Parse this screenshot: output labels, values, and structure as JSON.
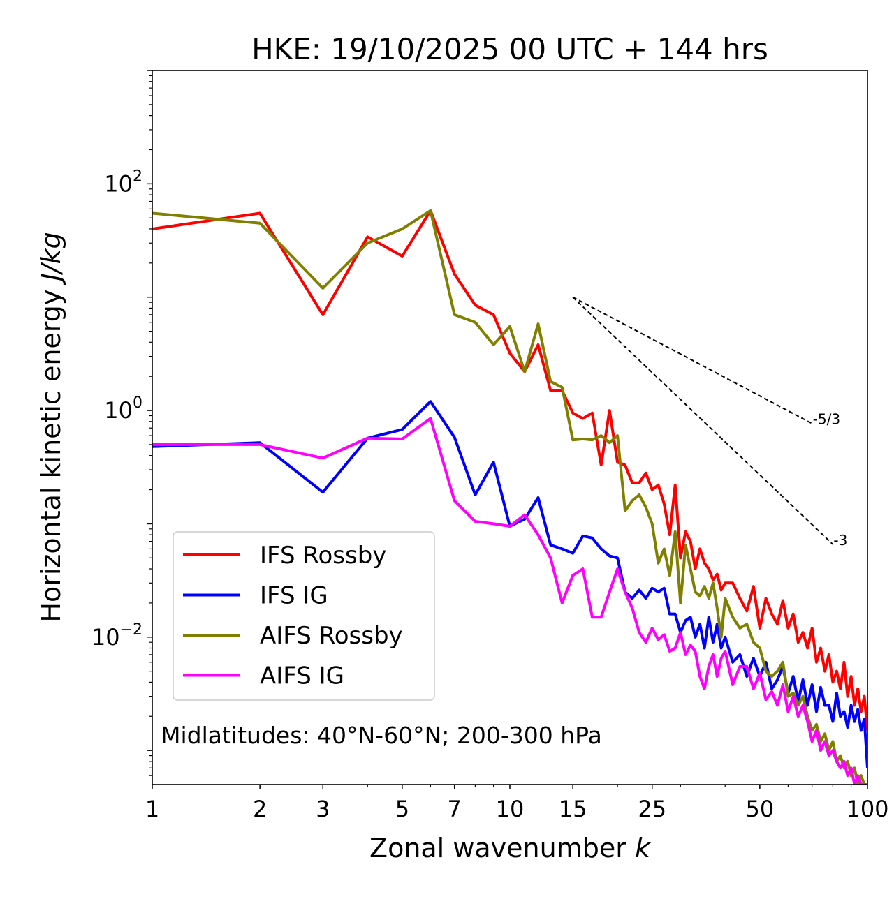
{
  "chart_data": {
    "type": "line",
    "title": "HKE: 19/10/2025 00 UTC + 144 hrs",
    "xlabel": "Zonal wavenumber",
    "xlabel_symbol": "k",
    "ylabel": "Horizontal kinetic energy",
    "ylabel_unit": "J/kg",
    "xscale": "log",
    "yscale": "log",
    "xlim": [
      1,
      100
    ],
    "ylim": [
      0.0005,
      1000
    ],
    "x_ticks": [
      1,
      2,
      3,
      5,
      7,
      10,
      15,
      25,
      50,
      100
    ],
    "x_tick_labels": [
      "1",
      "2",
      "3",
      "5",
      "7",
      "10",
      "15",
      "25",
      "50",
      "100"
    ],
    "y_ticks": [
      {
        "value": 100,
        "base": "10",
        "exp": "2"
      },
      {
        "value": 1,
        "base": "10",
        "exp": "0"
      },
      {
        "value": 0.01,
        "base": "10",
        "exp": "−2"
      }
    ],
    "annotation": "Midlatitudes: 40°N-60°N; 200-300 hPa",
    "legend_position": "lower-left",
    "reference_slopes": [
      {
        "label": "-5/3",
        "slope": -1.6667,
        "x_start": 15,
        "x_end": 70,
        "y_start": 10
      },
      {
        "label": "-3",
        "slope": -3,
        "x_start": 15,
        "x_end": 80,
        "y_start": 10
      }
    ],
    "series": [
      {
        "name": "IFS Rossby",
        "color": "#ff0000",
        "x": [
          1,
          2,
          3,
          4,
          5,
          6,
          7,
          8,
          9,
          10,
          11,
          12,
          13,
          14,
          15,
          16,
          17,
          18,
          19,
          20,
          21,
          22,
          23,
          24,
          25,
          26,
          27,
          28,
          29,
          30,
          31,
          32,
          33,
          34,
          35,
          36,
          37,
          38,
          39,
          40,
          42,
          44,
          46,
          48,
          50,
          52,
          54,
          56,
          58,
          60,
          62,
          64,
          66,
          68,
          70,
          72,
          74,
          76,
          78,
          80,
          82,
          84,
          86,
          88,
          90,
          92,
          94,
          96,
          98,
          100
        ],
        "values": [
          40,
          55,
          7,
          34,
          23,
          58,
          16,
          8.5,
          7,
          3.2,
          2.2,
          3.8,
          1.5,
          1.5,
          0.95,
          0.85,
          0.95,
          0.33,
          1.0,
          0.35,
          0.33,
          0.23,
          0.23,
          0.28,
          0.2,
          0.22,
          0.15,
          0.08,
          0.22,
          0.05,
          0.085,
          0.07,
          0.04,
          0.06,
          0.045,
          0.04,
          0.032,
          0.036,
          0.026,
          0.03,
          0.03,
          0.022,
          0.017,
          0.028,
          0.012,
          0.022,
          0.016,
          0.013,
          0.021,
          0.012,
          0.016,
          0.009,
          0.011,
          0.008,
          0.012,
          0.006,
          0.008,
          0.005,
          0.007,
          0.004,
          0.005,
          0.0035,
          0.006,
          0.003,
          0.0045,
          0.0025,
          0.0035,
          0.0022,
          0.003,
          0.0015
        ]
      },
      {
        "name": "IFS IG",
        "color": "#0000ff",
        "x": [
          1,
          2,
          3,
          4,
          5,
          6,
          7,
          8,
          9,
          10,
          11,
          12,
          13,
          14,
          15,
          16,
          17,
          18,
          19,
          20,
          21,
          22,
          23,
          24,
          25,
          26,
          27,
          28,
          29,
          30,
          31,
          32,
          33,
          34,
          35,
          36,
          37,
          38,
          39,
          40,
          42,
          44,
          46,
          48,
          50,
          52,
          54,
          56,
          58,
          60,
          62,
          64,
          66,
          68,
          70,
          72,
          74,
          76,
          78,
          80,
          82,
          84,
          86,
          88,
          90,
          92,
          94,
          96,
          98,
          100
        ],
        "values": [
          0.48,
          0.52,
          0.19,
          0.57,
          0.68,
          1.2,
          0.58,
          0.18,
          0.35,
          0.095,
          0.11,
          0.17,
          0.065,
          0.06,
          0.055,
          0.078,
          0.075,
          0.06,
          0.052,
          0.05,
          0.025,
          0.022,
          0.026,
          0.022,
          0.027,
          0.025,
          0.027,
          0.016,
          0.016,
          0.011,
          0.014,
          0.015,
          0.01,
          0.013,
          0.008,
          0.015,
          0.009,
          0.013,
          0.008,
          0.01,
          0.006,
          0.007,
          0.0045,
          0.0065,
          0.0045,
          0.006,
          0.0035,
          0.0042,
          0.0055,
          0.0032,
          0.0045,
          0.0027,
          0.0042,
          0.0025,
          0.0038,
          0.0022,
          0.0036,
          0.0025,
          0.0025,
          0.0018,
          0.0032,
          0.002,
          0.0022,
          0.0016,
          0.0025,
          0.0018,
          0.0023,
          0.0015,
          0.0019,
          0.0007
        ]
      },
      {
        "name": "AIFS Rossby",
        "color": "#808000",
        "x": [
          1,
          2,
          3,
          4,
          5,
          6,
          7,
          8,
          9,
          10,
          11,
          12,
          13,
          14,
          15,
          16,
          17,
          18,
          19,
          20,
          21,
          22,
          23,
          24,
          25,
          26,
          27,
          28,
          29,
          30,
          31,
          32,
          33,
          34,
          35,
          36,
          37,
          38,
          39,
          40,
          42,
          44,
          46,
          48,
          50,
          52,
          54,
          56,
          58,
          60,
          62,
          64,
          66,
          68,
          70,
          72,
          74,
          76,
          78,
          80,
          82,
          84,
          86,
          88,
          90,
          92,
          94,
          96,
          98,
          100
        ],
        "values": [
          55,
          45,
          12,
          30,
          40,
          58,
          7,
          6,
          3.8,
          5.5,
          2.2,
          5.8,
          1.8,
          1.6,
          0.55,
          0.56,
          0.55,
          0.6,
          0.52,
          0.6,
          0.13,
          0.16,
          0.18,
          0.14,
          0.1,
          0.045,
          0.06,
          0.035,
          0.085,
          0.02,
          0.065,
          0.04,
          0.025,
          0.023,
          0.028,
          0.022,
          0.03,
          0.018,
          0.01,
          0.022,
          0.015,
          0.012,
          0.013,
          0.009,
          0.008,
          0.005,
          0.0045,
          0.005,
          0.006,
          0.003,
          0.0032,
          0.0025,
          0.003,
          0.002,
          0.0015,
          0.0017,
          0.0012,
          0.0014,
          0.001,
          0.0012,
          0.0008,
          0.0009,
          0.0007,
          0.0008,
          0.0006,
          0.0007,
          0.0005,
          0.0006,
          0.0005,
          0.0005
        ]
      },
      {
        "name": "AIFS IG",
        "color": "#ff00ff",
        "x": [
          1,
          2,
          3,
          4,
          5,
          6,
          7,
          8,
          9,
          10,
          11,
          12,
          13,
          14,
          15,
          16,
          17,
          18,
          19,
          20,
          21,
          22,
          23,
          24,
          25,
          26,
          27,
          28,
          29,
          30,
          31,
          32,
          33,
          34,
          35,
          36,
          37,
          38,
          39,
          40,
          42,
          44,
          46,
          48,
          50,
          52,
          54,
          56,
          58,
          60,
          62,
          64,
          66,
          68,
          70,
          72,
          74,
          76,
          78,
          80,
          82,
          84,
          86,
          88,
          90,
          92,
          94,
          96,
          98,
          100
        ],
        "values": [
          0.5,
          0.5,
          0.38,
          0.57,
          0.56,
          0.85,
          0.16,
          0.105,
          0.1,
          0.095,
          0.12,
          0.08,
          0.05,
          0.02,
          0.035,
          0.04,
          0.015,
          0.015,
          0.025,
          0.04,
          0.025,
          0.018,
          0.011,
          0.009,
          0.012,
          0.0095,
          0.0105,
          0.0075,
          0.008,
          0.011,
          0.007,
          0.0085,
          0.0075,
          0.0045,
          0.0035,
          0.0055,
          0.007,
          0.0045,
          0.0065,
          0.0075,
          0.0038,
          0.0055,
          0.0055,
          0.0035,
          0.0048,
          0.0028,
          0.0033,
          0.0025,
          0.0038,
          0.0022,
          0.003,
          0.002,
          0.0025,
          0.0018,
          0.0012,
          0.0015,
          0.001,
          0.0012,
          0.0009,
          0.001,
          0.0008,
          0.0007,
          0.0008,
          0.0006,
          0.0007,
          0.0005,
          0.0006,
          0.0005,
          0.0005,
          0.0005
        ]
      }
    ]
  }
}
